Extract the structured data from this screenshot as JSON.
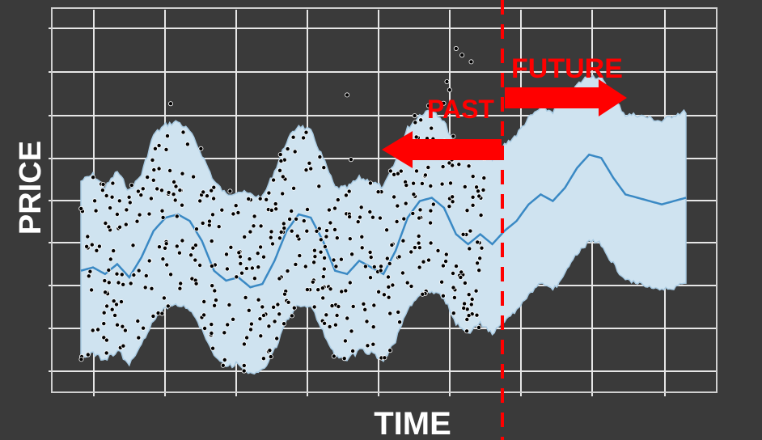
{
  "chart_data": {
    "type": "line",
    "title": "",
    "xlabel": "TIME",
    "ylabel": "PRICE",
    "grid": true,
    "annotations": {
      "past": "PAST",
      "future": "FUTURE",
      "divider_at_x": 0.64
    },
    "colors": {
      "background": "#3a3a3a",
      "plot_background": "#ffffff",
      "grid": "#ffffff",
      "band": "#cfe3f0",
      "band_edge": "#a9cbe3",
      "forecast_line": "#3a89c4",
      "observed_points": "#000000",
      "annotation": "#ff0000",
      "axis_label": "#ffffff"
    },
    "xlim": [
      0,
      1
    ],
    "ylim": [
      0,
      1
    ],
    "series": [
      {
        "role": "forecast",
        "x": [
          0.0,
          0.02,
          0.04,
          0.06,
          0.08,
          0.1,
          0.12,
          0.14,
          0.16,
          0.18,
          0.2,
          0.22,
          0.24,
          0.26,
          0.28,
          0.3,
          0.32,
          0.34,
          0.36,
          0.38,
          0.4,
          0.42,
          0.44,
          0.46,
          0.48,
          0.5,
          0.52,
          0.54,
          0.56,
          0.58,
          0.6,
          0.62,
          0.64,
          0.66,
          0.68,
          0.7,
          0.72,
          0.74,
          0.76,
          0.78,
          0.8,
          0.82,
          0.84,
          0.86,
          0.88,
          0.9,
          0.92,
          0.94,
          0.96,
          0.98,
          1.0
        ],
        "y": [
          0.33,
          0.34,
          0.32,
          0.35,
          0.31,
          0.37,
          0.45,
          0.49,
          0.5,
          0.48,
          0.42,
          0.33,
          0.3,
          0.31,
          0.28,
          0.29,
          0.36,
          0.45,
          0.5,
          0.49,
          0.42,
          0.33,
          0.32,
          0.36,
          0.34,
          0.32,
          0.39,
          0.49,
          0.54,
          0.55,
          0.52,
          0.44,
          0.41,
          0.44,
          0.41,
          0.45,
          0.48,
          0.53,
          0.56,
          0.54,
          0.58,
          0.64,
          0.68,
          0.67,
          0.61,
          0.56,
          0.55,
          0.54,
          0.53,
          0.54,
          0.55
        ]
      },
      {
        "role": "upper_bound",
        "y": [
          0.6,
          0.62,
          0.58,
          0.63,
          0.57,
          0.62,
          0.74,
          0.77,
          0.78,
          0.75,
          0.68,
          0.6,
          0.56,
          0.57,
          0.56,
          0.55,
          0.63,
          0.72,
          0.77,
          0.75,
          0.67,
          0.58,
          0.58,
          0.61,
          0.6,
          0.58,
          0.66,
          0.76,
          0.8,
          0.82,
          0.78,
          0.7,
          0.67,
          0.7,
          0.67,
          0.71,
          0.74,
          0.79,
          0.82,
          0.81,
          0.84,
          0.89,
          0.92,
          0.91,
          0.85,
          0.8,
          0.8,
          0.79,
          0.78,
          0.8,
          0.81
        ]
      },
      {
        "role": "lower_bound",
        "y": [
          0.07,
          0.08,
          0.06,
          0.09,
          0.05,
          0.11,
          0.18,
          0.22,
          0.23,
          0.21,
          0.15,
          0.07,
          0.04,
          0.05,
          0.02,
          0.03,
          0.09,
          0.18,
          0.23,
          0.22,
          0.15,
          0.07,
          0.06,
          0.09,
          0.08,
          0.06,
          0.12,
          0.21,
          0.26,
          0.27,
          0.25,
          0.17,
          0.14,
          0.17,
          0.14,
          0.18,
          0.21,
          0.26,
          0.29,
          0.27,
          0.32,
          0.38,
          0.42,
          0.41,
          0.35,
          0.3,
          0.29,
          0.28,
          0.27,
          0.28,
          0.29
        ]
      }
    ],
    "points_x_range": [
      0.0,
      0.67
    ]
  }
}
